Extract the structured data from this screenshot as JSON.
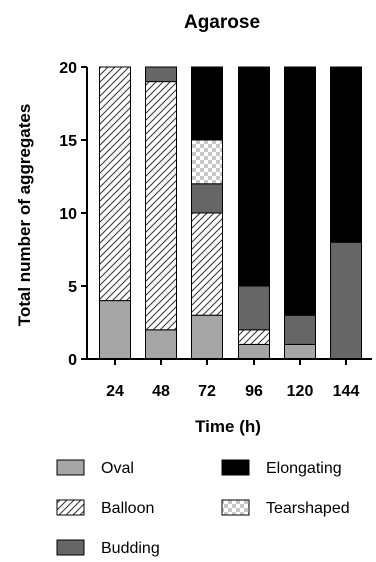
{
  "chart_data": {
    "type": "bar",
    "stacked": true,
    "title": "Agarose",
    "xlabel": "Time (h)",
    "ylabel": "Total number of aggregates",
    "categories": [
      "24",
      "48",
      "72",
      "96",
      "120",
      "144"
    ],
    "ylim": [
      0,
      20
    ],
    "yticks": [
      "0",
      "5",
      "10",
      "15",
      "20"
    ],
    "grid": false,
    "legend_position": "bottom",
    "series": [
      {
        "name": "Oval",
        "values": [
          4,
          2,
          3,
          1,
          1,
          0
        ],
        "fill": "#a6a6a6"
      },
      {
        "name": "Balloon",
        "values": [
          16,
          17,
          7,
          1,
          0,
          0
        ],
        "fill": "hatch"
      },
      {
        "name": "Budding",
        "values": [
          0,
          1,
          2,
          3,
          2,
          8
        ],
        "fill": "#666666"
      },
      {
        "name": "Tearshaped",
        "values": [
          0,
          0,
          3,
          0,
          0,
          0
        ],
        "fill": "checker"
      },
      {
        "name": "Elongating",
        "values": [
          0,
          0,
          5,
          15,
          17,
          12
        ],
        "fill": "#000000"
      }
    ],
    "legend_order": [
      "Oval",
      "Elongating",
      "Balloon",
      "Tearshaped",
      "Budding"
    ]
  }
}
